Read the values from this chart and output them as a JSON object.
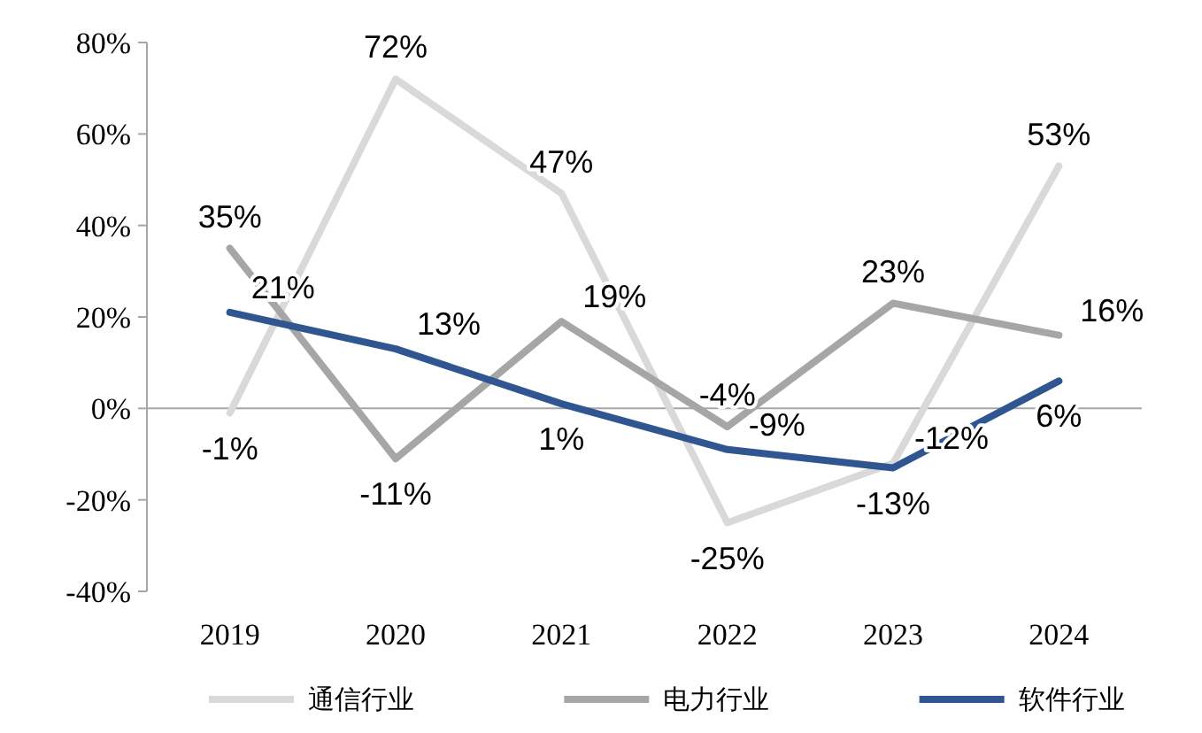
{
  "chart_data": {
    "type": "line",
    "categories": [
      "2019",
      "2020",
      "2021",
      "2022",
      "2023",
      "2024"
    ],
    "series": [
      {
        "name": "通信行业",
        "color": "#d9d9d9",
        "values": [
          -1,
          72,
          47,
          -25,
          -12,
          53
        ],
        "value_labels": [
          "-1%",
          "72%",
          "47%",
          "-25%",
          "-12%",
          "53%"
        ]
      },
      {
        "name": "电力行业",
        "color": "#a6a6a6",
        "values": [
          35,
          -11,
          19,
          -4,
          23,
          16
        ],
        "value_labels": [
          "35%",
          "-11%",
          "19%",
          "-4%",
          "23%",
          "16%"
        ]
      },
      {
        "name": "软件行业",
        "color": "#2f5690",
        "values": [
          21,
          13,
          1,
          -9,
          -13,
          6
        ],
        "value_labels": [
          "21%",
          "13%",
          "1%",
          "-9%",
          "-13%",
          "6%"
        ]
      }
    ],
    "ylim": [
      -40,
      80
    ],
    "yticks": [
      {
        "value": -40,
        "label": "-40%"
      },
      {
        "value": -20,
        "label": "-20%"
      },
      {
        "value": 0,
        "label": "0%"
      },
      {
        "value": 20,
        "label": "20%"
      },
      {
        "value": 40,
        "label": "40%"
      },
      {
        "value": 60,
        "label": "60%"
      },
      {
        "value": 80,
        "label": "80%"
      }
    ],
    "legend": "bottom"
  }
}
